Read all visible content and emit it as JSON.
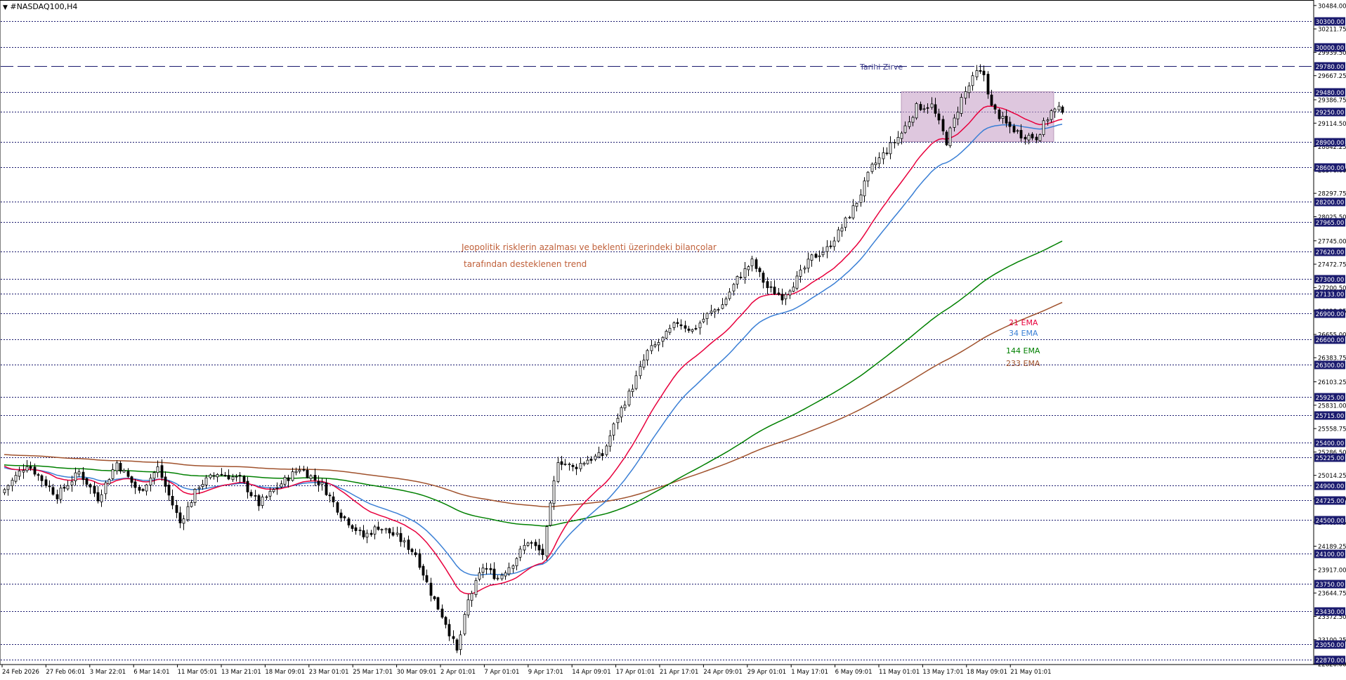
{
  "window": {
    "symbol_title": "#NASDAQ100,H4",
    "menu_icon": "triangle-down-icon"
  },
  "colors": {
    "background": "#ffffff",
    "grid": "#000000",
    "level_line": "#1a1a6e",
    "bull_candle": "#ffffff",
    "bear_candle": "#000000",
    "ema21": "#e8003d",
    "ema34": "#3a7fd5",
    "ema144": "#008000",
    "ema233": "#a0522d",
    "range_box": "#c8a2c8",
    "price_tag_bg": "#1a1a6e",
    "price_tag_text": "#ffffff",
    "annotation_text": "#c0603a",
    "ath_text": "#3a3a8a"
  },
  "annotations": {
    "ath_label": "Tarihi Zirve",
    "trend_line1": "Jeopolitik risklerin azalması ve beklenti üzerindeki bilançolar",
    "trend_line2": "tarafından desteklenen trend",
    "ema21_label": "21 EMA",
    "ema34_label": "34 EMA",
    "ema144_label": "144 EMA",
    "ema233_label": "233 EMA"
  },
  "chart_data": {
    "type": "candlestick",
    "symbol": "#NASDAQ100",
    "timeframe": "H4",
    "ylim": [
      22820,
      30540
    ],
    "y_axis_ticks": [
      "30484.00",
      "30211.75",
      "29939.50",
      "29667.25",
      "29386.75",
      "29114.50",
      "28842.25",
      "28570.00",
      "28297.75",
      "28025.50",
      "27745.00",
      "27472.75",
      "27200.50",
      "26928.25",
      "26655.00",
      "26383.75",
      "26103.25",
      "25831.00",
      "25558.75",
      "25286.50",
      "25014.25",
      "24742.00",
      "24469.75",
      "24189.25",
      "23917.00",
      "23644.75",
      "23372.50",
      "23100.25",
      "22820.00"
    ],
    "horizontal_levels": [
      "30300.00",
      "30000.00",
      "29780.00",
      "29480.00",
      "29250.00",
      "28900.00",
      "28600.00",
      "28200.00",
      "27965.00",
      "27620.00",
      "27300.00",
      "27133.00",
      "26900.00",
      "26600.00",
      "26300.00",
      "25925.00",
      "25715.00",
      "25400.00",
      "25225.00",
      "24900.00",
      "24725.00",
      "24500.00",
      "24100.00",
      "23750.00",
      "23430.00",
      "23050.00",
      "22870.00"
    ],
    "ath_level": 29780,
    "range_box": {
      "top": 29480,
      "bottom": 28900,
      "start": "8 May 2026",
      "end": "21 May 2026"
    },
    "x_labels": [
      "24 Feb 2026",
      "27 Feb 06:01",
      "3 Mar 22:01",
      "6 Mar 14:01",
      "11 Mar 05:01",
      "13 Mar 21:01",
      "18 Mar 09:01",
      "23 Mar 01:01",
      "25 Mar 17:01",
      "30 Mar 09:01",
      "2 Apr 01:01",
      "7 Apr 01:01",
      "9 Apr 17:01",
      "14 Apr 09:01",
      "17 Apr 01:01",
      "21 Apr 17:01",
      "24 Apr 09:01",
      "29 Apr 01:01",
      "1 May 17:01",
      "6 May 09:01",
      "11 May 01:01",
      "13 May 17:01",
      "18 May 09:01",
      "21 May 01:01"
    ],
    "close_anchors": [
      [
        0,
        24850
      ],
      [
        6,
        25150
      ],
      [
        14,
        24780
      ],
      [
        20,
        25050
      ],
      [
        25,
        24750
      ],
      [
        30,
        25160
      ],
      [
        36,
        24820
      ],
      [
        41,
        25100
      ],
      [
        47,
        24460
      ],
      [
        52,
        24900
      ],
      [
        57,
        25040
      ],
      [
        63,
        24970
      ],
      [
        68,
        24680
      ],
      [
        74,
        24920
      ],
      [
        79,
        25100
      ],
      [
        85,
        24900
      ],
      [
        90,
        24560
      ],
      [
        96,
        24300
      ],
      [
        100,
        24420
      ],
      [
        105,
        24300
      ],
      [
        110,
        24100
      ],
      [
        114,
        23650
      ],
      [
        118,
        23300
      ],
      [
        121,
        22960
      ],
      [
        124,
        23550
      ],
      [
        128,
        23950
      ],
      [
        132,
        23820
      ],
      [
        136,
        24000
      ],
      [
        140,
        24250
      ],
      [
        144,
        24100
      ],
      [
        148,
        25200
      ],
      [
        152,
        25100
      ],
      [
        156,
        25200
      ],
      [
        160,
        25250
      ],
      [
        164,
        25700
      ],
      [
        168,
        26050
      ],
      [
        172,
        26450
      ],
      [
        176,
        26600
      ],
      [
        180,
        26800
      ],
      [
        184,
        26700
      ],
      [
        188,
        26880
      ],
      [
        192,
        27000
      ],
      [
        196,
        27300
      ],
      [
        200,
        27500
      ],
      [
        204,
        27200
      ],
      [
        208,
        27100
      ],
      [
        212,
        27300
      ],
      [
        216,
        27550
      ],
      [
        220,
        27650
      ],
      [
        224,
        27900
      ],
      [
        228,
        28200
      ],
      [
        232,
        28600
      ],
      [
        236,
        28800
      ],
      [
        240,
        29000
      ],
      [
        244,
        29300
      ],
      [
        248,
        29320
      ],
      [
        252,
        28900
      ],
      [
        256,
        29400
      ],
      [
        260,
        29700
      ],
      [
        262,
        29680
      ],
      [
        264,
        29300
      ],
      [
        268,
        29100
      ],
      [
        272,
        28980
      ],
      [
        276,
        28950
      ],
      [
        280,
        29250
      ],
      [
        283,
        29280
      ]
    ],
    "ema_start": {
      "ema21": 25150,
      "ema34": 25120,
      "ema144": 25140,
      "ema233": 25260
    },
    "series": [
      {
        "name": "21 EMA",
        "period": 21
      },
      {
        "name": "34 EMA",
        "period": 34
      },
      {
        "name": "144 EMA",
        "period": 144
      },
      {
        "name": "233 EMA",
        "period": 233
      }
    ],
    "grid": true
  }
}
